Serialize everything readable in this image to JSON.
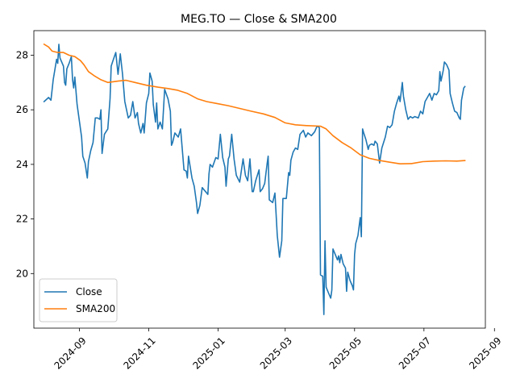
{
  "chart_data": {
    "type": "line",
    "title": "MEG.TO — Close & SMA200",
    "xlabel": "",
    "ylabel": "",
    "x_range": [
      "2024-07-23",
      "2025-08-24"
    ],
    "ylim": [
      18.0,
      28.9
    ],
    "x_ticks": [
      "2024-09",
      "2024-11",
      "2025-01",
      "2025-03",
      "2025-05",
      "2025-07",
      "2025-09"
    ],
    "x_tick_dates": [
      "2024-09-01",
      "2024-11-01",
      "2025-01-01",
      "2025-03-01",
      "2025-05-01",
      "2025-07-01",
      "2025-09-01"
    ],
    "y_ticks": [
      "20",
      "22",
      "24",
      "26",
      "28"
    ],
    "y_tick_values": [
      20,
      22,
      24,
      26,
      28
    ],
    "grid": false,
    "legend_position": "lower-left",
    "series": [
      {
        "name": "Close",
        "color": "#1f77b4",
        "points": [
          [
            "2024-08-01",
            26.3
          ],
          [
            "2024-08-05",
            26.45
          ],
          [
            "2024-08-07",
            26.35
          ],
          [
            "2024-08-09",
            27.1
          ],
          [
            "2024-08-12",
            27.85
          ],
          [
            "2024-08-13",
            27.7
          ],
          [
            "2024-08-14",
            28.4
          ],
          [
            "2024-08-15",
            27.9
          ],
          [
            "2024-08-18",
            27.6
          ],
          [
            "2024-08-19",
            27.0
          ],
          [
            "2024-08-20",
            26.9
          ],
          [
            "2024-08-21",
            27.5
          ],
          [
            "2024-08-23",
            27.7
          ],
          [
            "2024-08-25",
            27.95
          ],
          [
            "2024-08-26",
            27.1
          ],
          [
            "2024-08-27",
            26.8
          ],
          [
            "2024-08-28",
            27.2
          ],
          [
            "2024-08-30",
            26.2
          ],
          [
            "2024-09-03",
            25.0
          ],
          [
            "2024-09-04",
            24.3
          ],
          [
            "2024-09-06",
            24.05
          ],
          [
            "2024-09-08",
            23.5
          ],
          [
            "2024-09-09",
            24.1
          ],
          [
            "2024-09-11",
            24.5
          ],
          [
            "2024-09-13",
            24.8
          ],
          [
            "2024-09-15",
            25.7
          ],
          [
            "2024-09-17",
            25.7
          ],
          [
            "2024-09-19",
            25.65
          ],
          [
            "2024-09-20",
            26.0
          ],
          [
            "2024-09-21",
            24.4
          ],
          [
            "2024-09-23",
            25.1
          ],
          [
            "2024-09-26",
            25.3
          ],
          [
            "2024-09-28",
            26.4
          ],
          [
            "2024-09-29",
            27.6
          ],
          [
            "2024-10-01",
            27.85
          ],
          [
            "2024-10-03",
            28.1
          ],
          [
            "2024-10-05",
            27.3
          ],
          [
            "2024-10-07",
            28.05
          ],
          [
            "2024-10-09",
            27.3
          ],
          [
            "2024-10-11",
            26.3
          ],
          [
            "2024-10-14",
            25.7
          ],
          [
            "2024-10-16",
            25.8
          ],
          [
            "2024-10-18",
            26.3
          ],
          [
            "2024-10-20",
            25.7
          ],
          [
            "2024-10-22",
            25.9
          ],
          [
            "2024-10-23",
            25.5
          ],
          [
            "2024-10-25",
            25.15
          ],
          [
            "2024-10-27",
            25.5
          ],
          [
            "2024-10-28",
            25.15
          ],
          [
            "2024-10-30",
            26.25
          ],
          [
            "2024-11-01",
            26.6
          ],
          [
            "2024-11-02",
            27.35
          ],
          [
            "2024-11-04",
            27.05
          ],
          [
            "2024-11-05",
            26.2
          ],
          [
            "2024-11-07",
            25.55
          ],
          [
            "2024-11-08",
            26.25
          ],
          [
            "2024-11-09",
            25.3
          ],
          [
            "2024-11-11",
            25.55
          ],
          [
            "2024-11-13",
            25.3
          ],
          [
            "2024-11-15",
            26.75
          ],
          [
            "2024-11-18",
            26.4
          ],
          [
            "2024-11-20",
            25.95
          ],
          [
            "2024-11-21",
            24.7
          ],
          [
            "2024-11-22",
            24.8
          ],
          [
            "2024-11-24",
            25.15
          ],
          [
            "2024-11-27",
            25.0
          ],
          [
            "2024-11-29",
            25.3
          ],
          [
            "2024-12-02",
            23.8
          ],
          [
            "2024-12-04",
            23.75
          ],
          [
            "2024-12-05",
            23.5
          ],
          [
            "2024-12-06",
            24.3
          ],
          [
            "2024-12-09",
            23.5
          ],
          [
            "2024-12-11",
            23.2
          ],
          [
            "2024-12-13",
            22.6
          ],
          [
            "2024-12-14",
            22.2
          ],
          [
            "2024-12-16",
            22.5
          ],
          [
            "2024-12-18",
            23.15
          ],
          [
            "2024-12-21",
            23.0
          ],
          [
            "2024-12-23",
            22.9
          ],
          [
            "2024-12-24",
            23.65
          ],
          [
            "2024-12-25",
            24.0
          ],
          [
            "2024-12-27",
            23.9
          ],
          [
            "2024-12-30",
            24.25
          ],
          [
            "2025-01-01",
            24.2
          ],
          [
            "2025-01-03",
            25.1
          ],
          [
            "2025-01-05",
            24.25
          ],
          [
            "2025-01-07",
            23.9
          ],
          [
            "2025-01-08",
            23.2
          ],
          [
            "2025-01-10",
            24.2
          ],
          [
            "2025-01-11",
            24.3
          ],
          [
            "2025-01-13",
            25.1
          ],
          [
            "2025-01-15",
            24.2
          ],
          [
            "2025-01-17",
            23.6
          ],
          [
            "2025-01-20",
            23.35
          ],
          [
            "2025-01-23",
            24.2
          ],
          [
            "2025-01-25",
            23.6
          ],
          [
            "2025-01-27",
            23.4
          ],
          [
            "2025-01-29",
            24.2
          ],
          [
            "2025-01-31",
            23.0
          ],
          [
            "2025-02-01",
            23.0
          ],
          [
            "2025-02-03",
            23.4
          ],
          [
            "2025-02-06",
            23.8
          ],
          [
            "2025-02-07",
            23.0
          ],
          [
            "2025-02-09",
            23.1
          ],
          [
            "2025-02-11",
            23.3
          ],
          [
            "2025-02-13",
            24.0
          ],
          [
            "2025-02-14",
            24.3
          ],
          [
            "2025-02-15",
            22.7
          ],
          [
            "2025-02-18",
            22.6
          ],
          [
            "2025-02-20",
            22.95
          ],
          [
            "2025-02-22",
            21.4
          ],
          [
            "2025-02-24",
            20.6
          ],
          [
            "2025-02-26",
            21.2
          ],
          [
            "2025-02-27",
            22.75
          ],
          [
            "2025-03-01",
            22.75
          ],
          [
            "2025-03-02",
            22.75
          ],
          [
            "2025-03-04",
            23.7
          ],
          [
            "2025-03-05",
            23.6
          ],
          [
            "2025-03-06",
            24.15
          ],
          [
            "2025-03-08",
            24.45
          ],
          [
            "2025-03-10",
            24.6
          ],
          [
            "2025-03-12",
            24.55
          ],
          [
            "2025-03-14",
            25.1
          ],
          [
            "2025-03-17",
            25.25
          ],
          [
            "2025-03-19",
            25.0
          ],
          [
            "2025-03-21",
            25.15
          ],
          [
            "2025-03-24",
            25.05
          ],
          [
            "2025-03-27",
            25.2
          ],
          [
            "2025-03-29",
            25.4
          ],
          [
            "2025-03-31",
            25.35
          ],
          [
            "2025-04-01",
            19.95
          ],
          [
            "2025-04-03",
            19.9
          ],
          [
            "2025-04-04",
            18.5
          ],
          [
            "2025-04-05",
            21.2
          ],
          [
            "2025-04-06",
            19.5
          ],
          [
            "2025-04-08",
            19.3
          ],
          [
            "2025-04-10",
            19.1
          ],
          [
            "2025-04-11",
            19.4
          ],
          [
            "2025-04-12",
            20.9
          ],
          [
            "2025-04-14",
            20.7
          ],
          [
            "2025-04-16",
            20.5
          ],
          [
            "2025-04-17",
            20.65
          ],
          [
            "2025-04-18",
            20.4
          ],
          [
            "2025-04-19",
            20.7
          ],
          [
            "2025-04-21",
            20.35
          ],
          [
            "2025-04-23",
            20.2
          ],
          [
            "2025-04-24",
            19.35
          ],
          [
            "2025-04-25",
            20.05
          ],
          [
            "2025-04-27",
            19.75
          ],
          [
            "2025-04-29",
            19.55
          ],
          [
            "2025-04-30",
            19.4
          ],
          [
            "2025-05-01",
            20.7
          ],
          [
            "2025-05-02",
            21.1
          ],
          [
            "2025-05-04",
            21.4
          ],
          [
            "2025-05-06",
            22.05
          ],
          [
            "2025-05-07",
            21.35
          ],
          [
            "2025-05-08",
            25.3
          ],
          [
            "2025-05-09",
            25.15
          ],
          [
            "2025-05-11",
            24.9
          ],
          [
            "2025-05-13",
            24.55
          ],
          [
            "2025-05-14",
            24.7
          ],
          [
            "2025-05-16",
            24.75
          ],
          [
            "2025-05-18",
            24.7
          ],
          [
            "2025-05-19",
            24.85
          ],
          [
            "2025-05-21",
            24.75
          ],
          [
            "2025-05-23",
            24.05
          ],
          [
            "2025-05-25",
            24.6
          ],
          [
            "2025-05-28",
            25.0
          ],
          [
            "2025-05-30",
            25.4
          ],
          [
            "2025-06-01",
            25.35
          ],
          [
            "2025-06-03",
            25.45
          ],
          [
            "2025-06-05",
            25.95
          ],
          [
            "2025-06-07",
            26.25
          ],
          [
            "2025-06-09",
            26.5
          ],
          [
            "2025-06-10",
            26.3
          ],
          [
            "2025-06-12",
            27.0
          ],
          [
            "2025-06-13",
            26.5
          ],
          [
            "2025-06-15",
            26.0
          ],
          [
            "2025-06-17",
            25.65
          ],
          [
            "2025-06-19",
            25.75
          ],
          [
            "2025-06-21",
            25.7
          ],
          [
            "2025-06-23",
            25.75
          ],
          [
            "2025-06-26",
            25.7
          ],
          [
            "2025-06-28",
            25.95
          ],
          [
            "2025-06-30",
            25.85
          ],
          [
            "2025-07-02",
            26.3
          ],
          [
            "2025-07-04",
            26.45
          ],
          [
            "2025-07-06",
            26.6
          ],
          [
            "2025-07-08",
            26.35
          ],
          [
            "2025-07-10",
            26.6
          ],
          [
            "2025-07-12",
            26.55
          ],
          [
            "2025-07-14",
            26.7
          ],
          [
            "2025-07-15",
            27.4
          ],
          [
            "2025-07-16",
            27.05
          ],
          [
            "2025-07-18",
            27.45
          ],
          [
            "2025-07-19",
            27.75
          ],
          [
            "2025-07-21",
            27.65
          ],
          [
            "2025-07-23",
            27.45
          ],
          [
            "2025-07-24",
            26.6
          ],
          [
            "2025-07-26",
            26.25
          ],
          [
            "2025-07-28",
            25.95
          ],
          [
            "2025-07-30",
            25.9
          ],
          [
            "2025-08-01",
            25.7
          ],
          [
            "2025-08-02",
            25.65
          ],
          [
            "2025-08-03",
            26.35
          ],
          [
            "2025-08-05",
            26.8
          ],
          [
            "2025-08-06",
            26.85
          ]
        ]
      },
      {
        "name": "SMA200",
        "color": "#ff7f0e",
        "points": [
          [
            "2024-08-01",
            28.4
          ],
          [
            "2024-08-05",
            28.3
          ],
          [
            "2024-08-08",
            28.15
          ],
          [
            "2024-08-13",
            28.1
          ],
          [
            "2024-08-18",
            28.1
          ],
          [
            "2024-08-23",
            28.0
          ],
          [
            "2024-08-28",
            27.95
          ],
          [
            "2024-09-02",
            27.8
          ],
          [
            "2024-09-05",
            27.65
          ],
          [
            "2024-09-09",
            27.4
          ],
          [
            "2024-09-14",
            27.25
          ],
          [
            "2024-09-20",
            27.1
          ],
          [
            "2024-09-26",
            27.0
          ],
          [
            "2024-10-05",
            27.05
          ],
          [
            "2024-10-12",
            27.08
          ],
          [
            "2024-10-20",
            27.0
          ],
          [
            "2024-10-30",
            26.9
          ],
          [
            "2024-11-09",
            26.83
          ],
          [
            "2024-11-18",
            26.78
          ],
          [
            "2024-11-26",
            26.72
          ],
          [
            "2024-12-05",
            26.6
          ],
          [
            "2024-12-14",
            26.4
          ],
          [
            "2024-12-22",
            26.3
          ],
          [
            "2025-01-01",
            26.22
          ],
          [
            "2025-01-10",
            26.15
          ],
          [
            "2025-01-20",
            26.05
          ],
          [
            "2025-01-30",
            25.95
          ],
          [
            "2025-02-10",
            25.85
          ],
          [
            "2025-02-20",
            25.72
          ],
          [
            "2025-03-01",
            25.52
          ],
          [
            "2025-03-10",
            25.45
          ],
          [
            "2025-03-20",
            25.42
          ],
          [
            "2025-04-01",
            25.4
          ],
          [
            "2025-04-06",
            25.3
          ],
          [
            "2025-04-12",
            25.05
          ],
          [
            "2025-04-20",
            24.8
          ],
          [
            "2025-04-28",
            24.6
          ],
          [
            "2025-05-06",
            24.35
          ],
          [
            "2025-05-14",
            24.22
          ],
          [
            "2025-05-22",
            24.15
          ],
          [
            "2025-06-01",
            24.08
          ],
          [
            "2025-06-10",
            24.02
          ],
          [
            "2025-06-20",
            24.03
          ],
          [
            "2025-06-30",
            24.1
          ],
          [
            "2025-07-10",
            24.12
          ],
          [
            "2025-07-20",
            24.13
          ],
          [
            "2025-07-30",
            24.12
          ],
          [
            "2025-08-06",
            24.14
          ]
        ]
      }
    ]
  }
}
